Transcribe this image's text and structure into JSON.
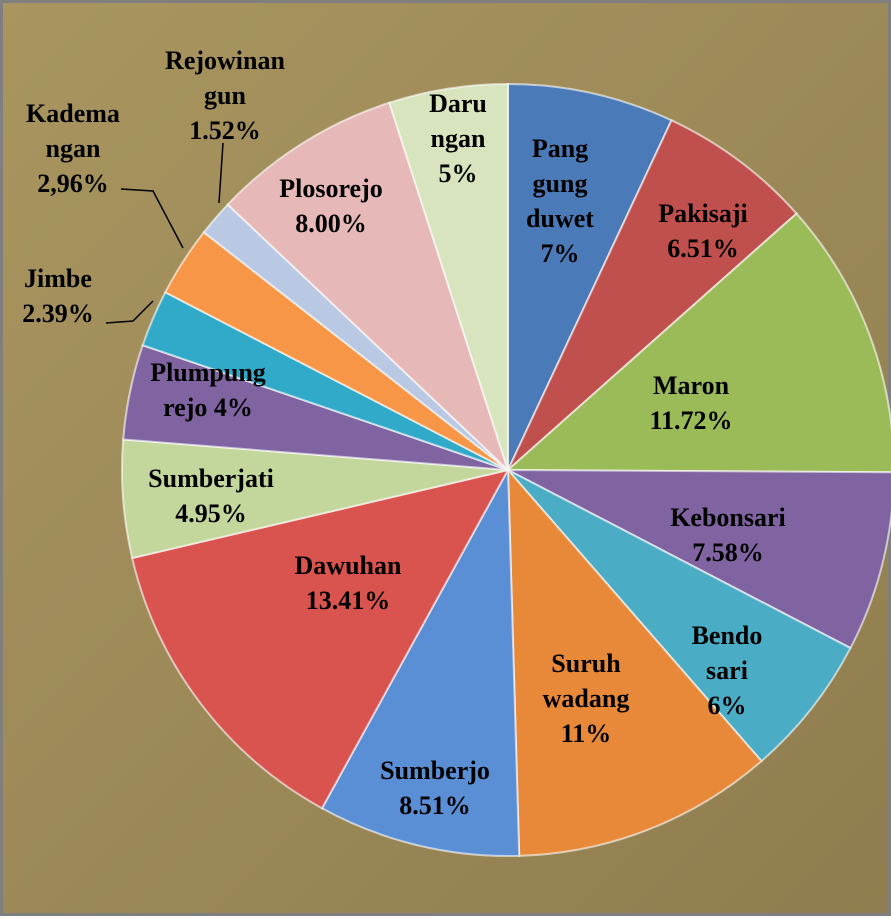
{
  "chart_data": {
    "type": "pie",
    "categories": [
      "Pang\ngung\nduwet",
      "Pakisaji",
      "Maron",
      "Kebonsari",
      "Bendo\nsari",
      "Suruh\nwadang",
      "Sumberjo",
      "Dawuhan",
      "Sumberjati",
      "Plumpung\nrejo",
      "Jimbe",
      "Kadema\nngan",
      "Rejowinan\ngun",
      "Plosorejo",
      "Daru\nngan"
    ],
    "values": [
      7,
      6.51,
      11.72,
      7.58,
      6,
      11,
      8.51,
      13.41,
      4.95,
      4,
      2.39,
      2.96,
      1.52,
      8.0,
      5
    ],
    "value_labels": [
      "7%",
      "6.51%",
      "11.72%",
      "7.58%",
      "6%",
      "11%",
      "8.51%",
      "13.41%",
      "4.95%",
      "4%",
      "2.39%",
      "2,96%",
      "1.52%",
      "8.00%",
      "5%"
    ],
    "colors": [
      "#4a7ab8",
      "#c0504d",
      "#9bbb59",
      "#8064a2",
      "#4bacc6",
      "#e8893a",
      "#5a8fd6",
      "#d9534f",
      "#c3d69b",
      "#8064a2",
      "#31a9c8",
      "#f79646",
      "#b9c9e4",
      "#e6b9b8",
      "#d7e4bd"
    ]
  }
}
